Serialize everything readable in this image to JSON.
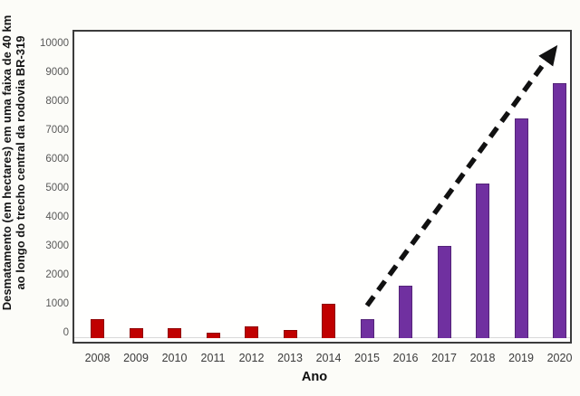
{
  "chart_data": {
    "type": "bar",
    "title": "",
    "xlabel": "Ano",
    "ylabel_line1": "Desmatamento (em hectares) em uma faixa de 40 km",
    "ylabel_line2": "ao longo do trecho central da rodovia BR-319",
    "categories": [
      "2008",
      "2009",
      "2010",
      "2011",
      "2012",
      "2013",
      "2014",
      "2015",
      "2016",
      "2017",
      "2018",
      "2019",
      "2020"
    ],
    "values": [
      650,
      350,
      350,
      180,
      420,
      280,
      1200,
      650,
      1800,
      3200,
      5350,
      7600,
      8800
    ],
    "bar_colors": [
      "#c00000",
      "#c00000",
      "#c00000",
      "#c00000",
      "#c00000",
      "#c00000",
      "#c00000",
      "#7030a0",
      "#7030a0",
      "#7030a0",
      "#7030a0",
      "#7030a0",
      "#7030a0"
    ],
    "bar_border_colors": [
      "#8f0000",
      "#8f0000",
      "#8f0000",
      "#8f0000",
      "#8f0000",
      "#8f0000",
      "#8f0000",
      "#542478",
      "#542478",
      "#542478",
      "#542478",
      "#542478",
      "#542478"
    ],
    "yticks": [
      0,
      1000,
      2000,
      3000,
      4000,
      5000,
      6000,
      7000,
      8000,
      9000,
      10000
    ],
    "ylim": [
      0,
      10500
    ],
    "grid": false,
    "legend": false,
    "annotations": {
      "trend_arrow": {
        "style": "dashed",
        "color": "#111111",
        "from": {
          "year": "2015",
          "value": 1150
        },
        "to": {
          "year": "2020",
          "value": 10000
        }
      }
    }
  },
  "colors": {
    "early_years_bars": "#c00000",
    "recent_years_bars": "#7030a0",
    "plot_border": "#3c3c3c",
    "baseline": "#d9d9d9",
    "ytick_text": "#595959",
    "xtick_text": "#3b3b3b"
  }
}
